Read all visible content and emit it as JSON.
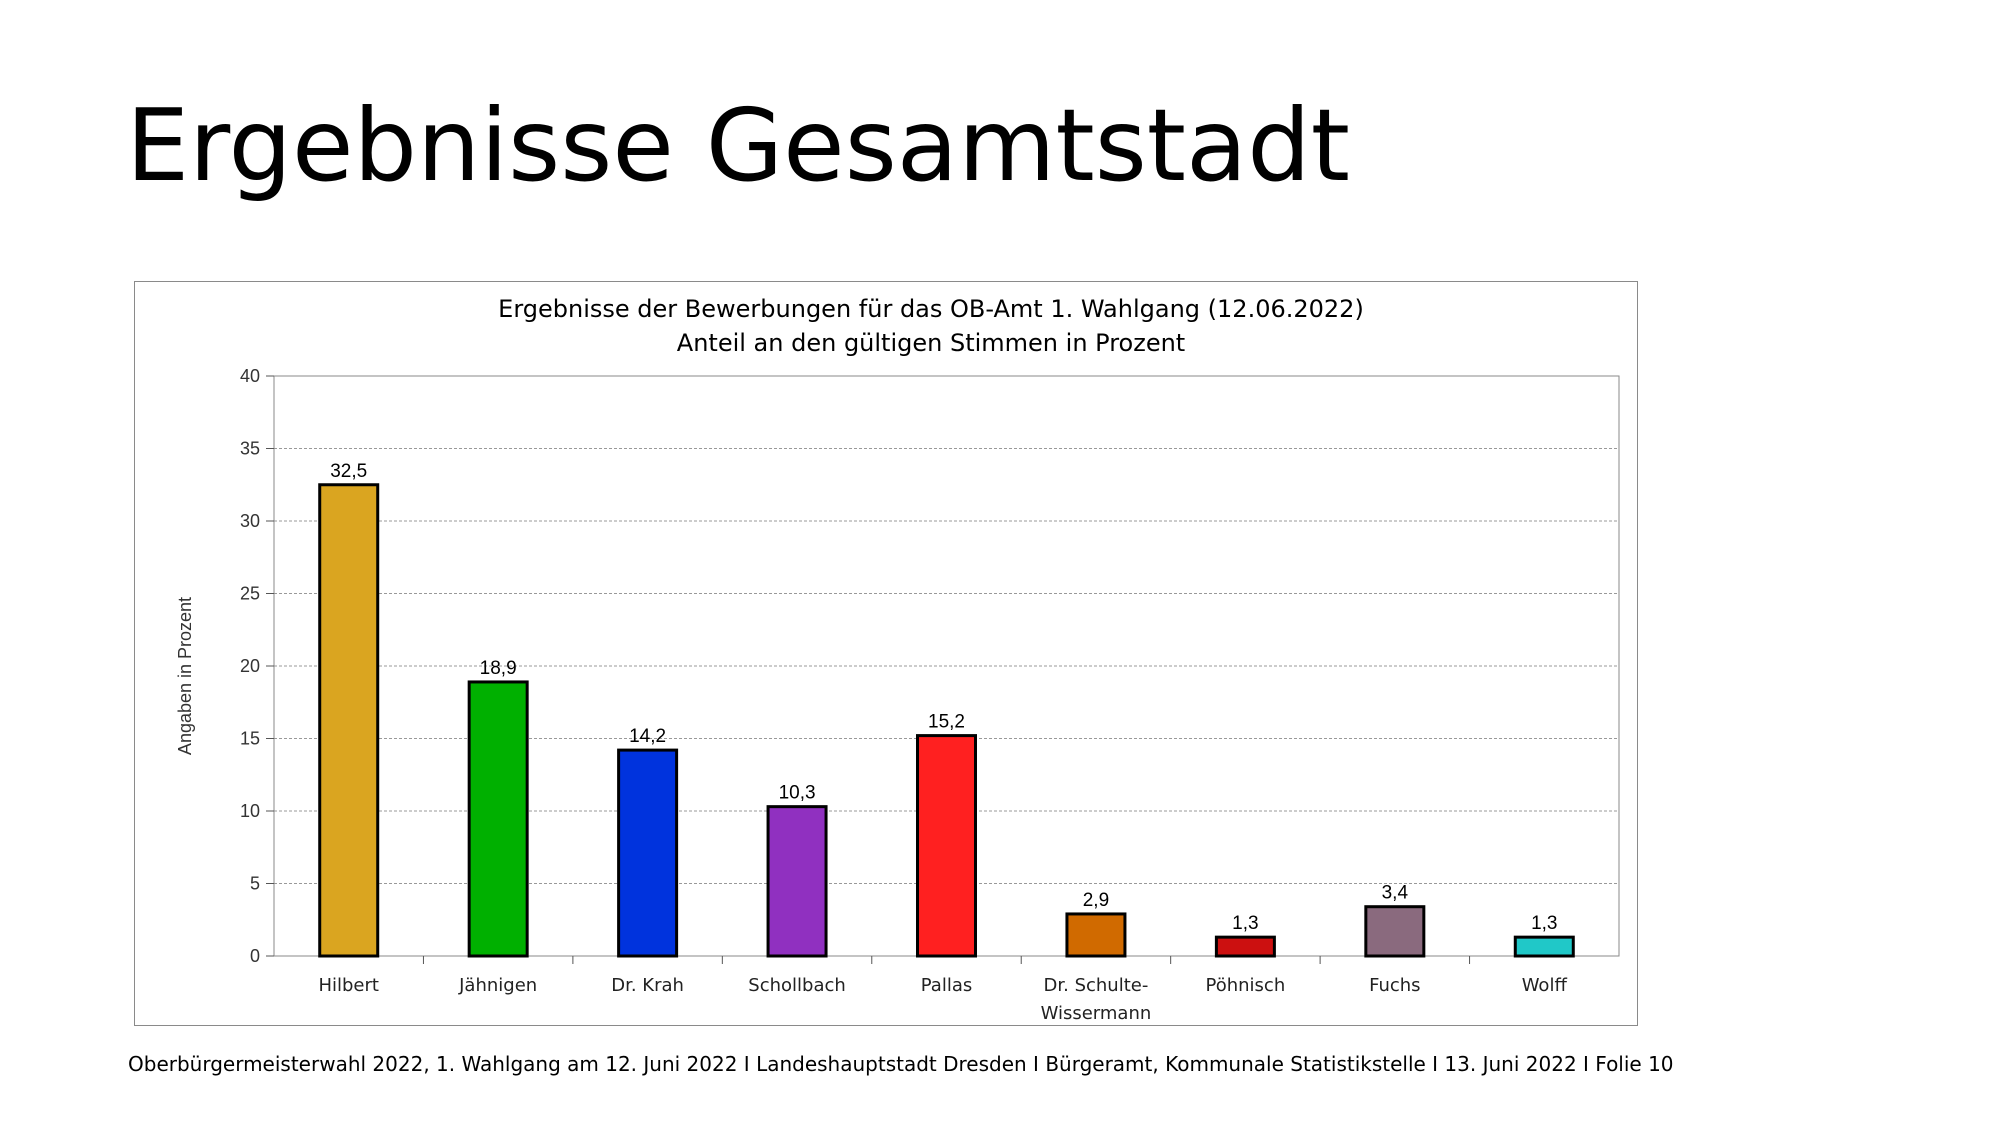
{
  "slide": {
    "title": "Ergebnisse Gesamtstadt",
    "footer": "Oberbürgermeisterwahl 2022, 1. Wahlgang am 12. Juni 2022 I Landeshauptstadt Dresden I Bürgeramt, Kommunale Statistikstelle I 13. Juni 2022 I Folie 10"
  },
  "chart_data": {
    "type": "bar",
    "title": "Ergebnisse der Bewerbungen für das OB-Amt 1. Wahlgang (12.06.2022)",
    "subtitle": "Anteil an den gültigen Stimmen in Prozent",
    "ylabel": "Angaben in Prozent",
    "xlabel": "",
    "ylim": [
      0,
      40
    ],
    "yticks": [
      0,
      5,
      10,
      15,
      20,
      25,
      30,
      35,
      40
    ],
    "grid": true,
    "categories": [
      "Hilbert",
      "Jähnigen",
      "Dr. Krah",
      "Schollbach",
      "Pallas",
      "Dr. Schulte-Wissermann",
      "Pöhnisch",
      "Fuchs",
      "Wolff"
    ],
    "category_lines": [
      [
        "Hilbert"
      ],
      [
        "Jähnigen"
      ],
      [
        "Dr. Krah"
      ],
      [
        "Schollbach"
      ],
      [
        "Pallas"
      ],
      [
        "Dr. Schulte-",
        "Wissermann"
      ],
      [
        "Pöhnisch"
      ],
      [
        "Fuchs"
      ],
      [
        "Wolff"
      ]
    ],
    "values": [
      32.5,
      18.9,
      14.2,
      10.3,
      15.2,
      2.9,
      1.3,
      3.4,
      1.3
    ],
    "value_labels": [
      "32,5",
      "18,9",
      "14,2",
      "10,3",
      "15,2",
      "2,9",
      "1,3",
      "3,4",
      "1,3"
    ],
    "colors": [
      "#DAA520",
      "#00B000",
      "#0033DD",
      "#9030C0",
      "#FF2020",
      "#D06A00",
      "#CC1010",
      "#8A6A7E",
      "#20C8C8"
    ]
  }
}
